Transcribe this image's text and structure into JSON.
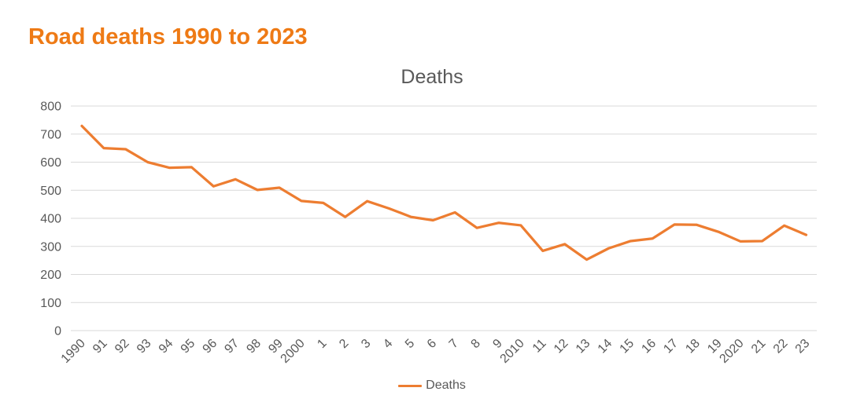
{
  "page": {
    "title": "Road deaths 1990 to 2023"
  },
  "colors": {
    "title_accent": "#EE7A15",
    "series_orange": "#ED7D31",
    "axis_text": "#595959",
    "gridline": "#D9D9D9"
  },
  "legend": {
    "label": "Deaths"
  },
  "chart_data": {
    "type": "line",
    "title": "Deaths",
    "categories": [
      "1990",
      "91",
      "92",
      "93",
      "94",
      "95",
      "96",
      "97",
      "98",
      "99",
      "2000",
      "1",
      "2",
      "3",
      "4",
      "5",
      "6",
      "7",
      "8",
      "9",
      "2010",
      "11",
      "12",
      "13",
      "14",
      "15",
      "16",
      "17",
      "18",
      "19",
      "2020",
      "21",
      "22",
      "23"
    ],
    "series": [
      {
        "name": "Deaths",
        "color": "#ED7D31",
        "values": [
          729,
          650,
          646,
          600,
          580,
          582,
          514,
          539,
          501,
          509,
          462,
          455,
          405,
          461,
          435,
          405,
          393,
          421,
          366,
          384,
          375,
          284,
          308,
          253,
          293,
          319,
          328,
          378,
          377,
          352,
          318,
          319,
          374,
          341
        ]
      }
    ],
    "xlabel": "",
    "ylabel": "",
    "ylim": [
      0,
      800
    ],
    "yticks": [
      0,
      100,
      200,
      300,
      400,
      500,
      600,
      700,
      800
    ],
    "grid": true,
    "grid_color": "#D9D9D9",
    "axis_text_color": "#595959",
    "legend_position": "bottom"
  }
}
